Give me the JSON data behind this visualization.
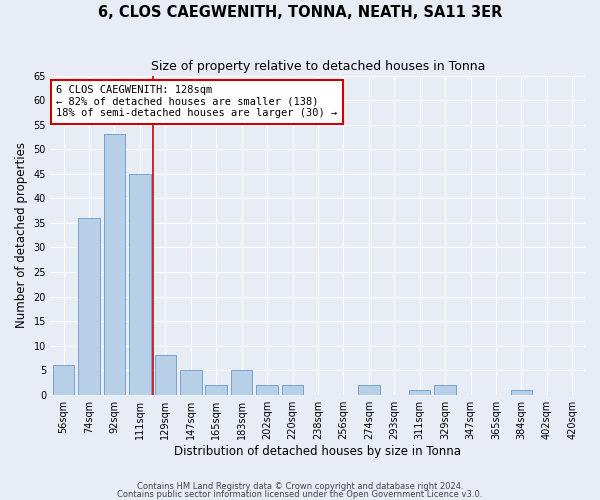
{
  "title": "6, CLOS CAEGWENITH, TONNA, NEATH, SA11 3ER",
  "subtitle": "Size of property relative to detached houses in Tonna",
  "xlabel": "Distribution of detached houses by size in Tonna",
  "ylabel": "Number of detached properties",
  "categories": [
    "56sqm",
    "74sqm",
    "92sqm",
    "111sqm",
    "129sqm",
    "147sqm",
    "165sqm",
    "183sqm",
    "202sqm",
    "220sqm",
    "238sqm",
    "256sqm",
    "274sqm",
    "293sqm",
    "311sqm",
    "329sqm",
    "347sqm",
    "365sqm",
    "384sqm",
    "402sqm",
    "420sqm"
  ],
  "values": [
    6,
    36,
    53,
    45,
    8,
    5,
    2,
    5,
    2,
    2,
    0,
    0,
    2,
    0,
    1,
    2,
    0,
    0,
    1,
    0,
    0
  ],
  "bar_color": "#b8cfe8",
  "bar_edge_color": "#6699cc",
  "red_line_x": 3.5,
  "annotation_text": "6 CLOS CAEGWENITH: 128sqm\n← 82% of detached houses are smaller (138)\n18% of semi-detached houses are larger (30) →",
  "annotation_box_color": "#ffffff",
  "annotation_box_edge": "#cc0000",
  "ylim": [
    0,
    65
  ],
  "yticks": [
    0,
    5,
    10,
    15,
    20,
    25,
    30,
    35,
    40,
    45,
    50,
    55,
    60,
    65
  ],
  "footnote1": "Contains HM Land Registry data © Crown copyright and database right 2024.",
  "footnote2": "Contains public sector information licensed under the Open Government Licence v3.0.",
  "bg_color": "#e8edf5",
  "grid_color": "#ffffff",
  "title_fontsize": 10.5,
  "subtitle_fontsize": 9,
  "tick_fontsize": 7,
  "label_fontsize": 8.5
}
